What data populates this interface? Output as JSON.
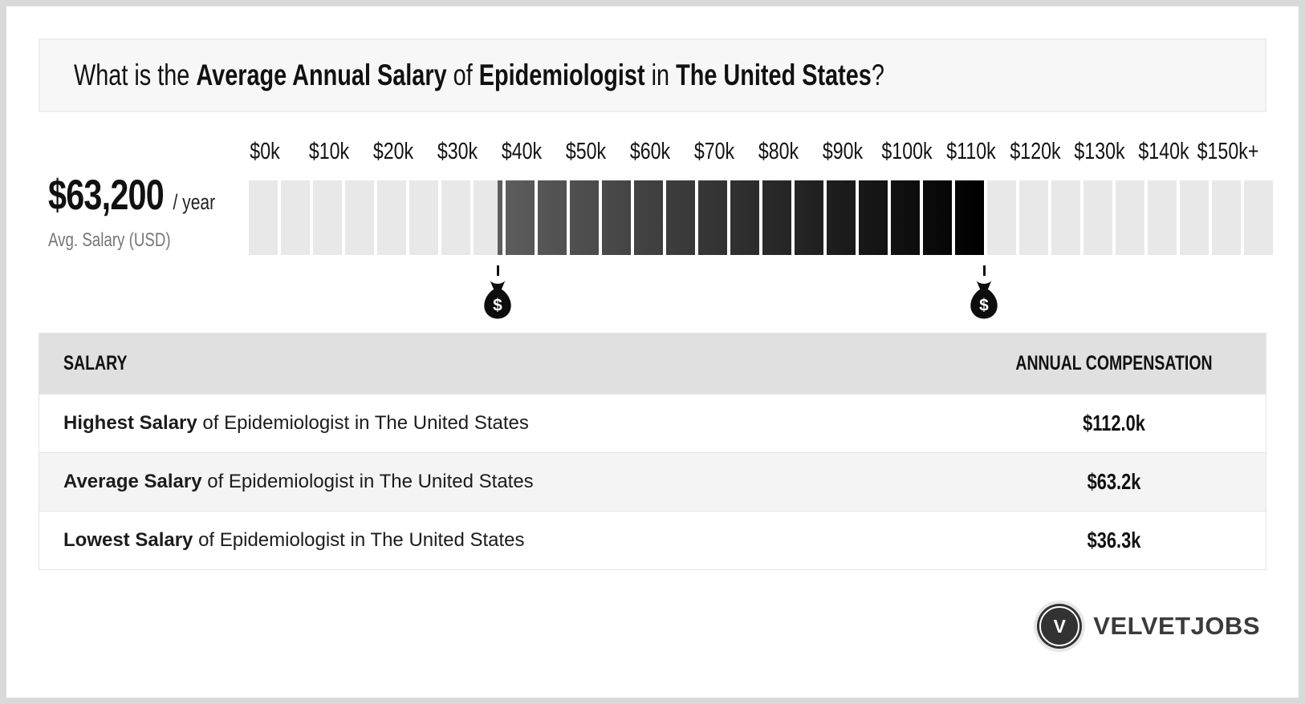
{
  "header": {
    "title_parts": [
      {
        "text": "What is the ",
        "bold": false
      },
      {
        "text": "Average Annual Salary",
        "bold": true
      },
      {
        "text": " of ",
        "bold": false
      },
      {
        "text": "Epidemiologist",
        "bold": true
      },
      {
        "text": " in ",
        "bold": false
      },
      {
        "text": "The United States",
        "bold": true
      },
      {
        "text": "?",
        "bold": false
      }
    ]
  },
  "salary_panel": {
    "amount": "$63,200",
    "per": "/ year",
    "caption": "Avg. Salary (USD)"
  },
  "chart_data": {
    "type": "bar",
    "title": "Average Annual Salary of Epidemiologist in The United States",
    "x_tick_labels": [
      "$0k",
      "$10k",
      "$20k",
      "$30k",
      "$40k",
      "$50k",
      "$60k",
      "$70k",
      "$80k",
      "$90k",
      "$100k",
      "$110k",
      "$120k",
      "$130k",
      "$140k",
      "$150k+"
    ],
    "lowest_k": 36.3,
    "average_k": 63.2,
    "highest_k": 112.0,
    "avg_salary_display": "$63,200 / year",
    "axis": {
      "min_k": 0,
      "max_k": 160,
      "cell_k": 5,
      "cells": 32,
      "value_offset_k": 2.5
    },
    "legend": "filled range spans lowest to highest salary, money-bag markers at both ends",
    "colors": {
      "empty_cell": "#e8e8e8",
      "fill_gradient_start": "#5e5e5e",
      "fill_gradient_end": "#000000",
      "marker": "#0d0d0d"
    }
  },
  "table": {
    "headers": [
      "SALARY",
      "ANNUAL COMPENSATION"
    ],
    "rows": [
      {
        "bold": "Highest Salary",
        "rest": " of Epidemiologist in The United States",
        "value": "$112.0k"
      },
      {
        "bold": "Average Salary",
        "rest": " of Epidemiologist in The United States",
        "value": "$63.2k"
      },
      {
        "bold": "Lowest Salary",
        "rest": " of Epidemiologist in The United States",
        "value": "$36.3k"
      }
    ]
  },
  "logo": {
    "glyph": "V",
    "name": "VELVETJOBS"
  }
}
